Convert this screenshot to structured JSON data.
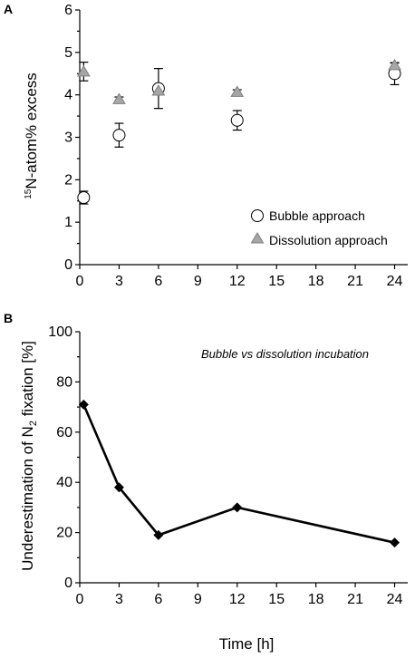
{
  "chart_data": [
    {
      "panel": "A",
      "type": "scatter",
      "ylabel": {
        "superscript": "15",
        "text": "N-atom% excess"
      },
      "xlabel": "",
      "xlim": [
        0,
        25
      ],
      "ylim": [
        0,
        6
      ],
      "x_ticks": [
        0,
        3,
        6,
        9,
        12,
        15,
        18,
        21,
        24
      ],
      "y_ticks": [
        0,
        1,
        2,
        3,
        4,
        5,
        6
      ],
      "grid": false,
      "legend": "bottom-right",
      "series": [
        {
          "name": "Bubble approach",
          "marker": "circle-open",
          "points": [
            {
              "x": 0.3,
              "y": 1.58,
              "err": 0.15
            },
            {
              "x": 3,
              "y": 3.05,
              "err": 0.28
            },
            {
              "x": 6,
              "y": 4.15,
              "err": 0.47
            },
            {
              "x": 12,
              "y": 3.4,
              "err": 0.23
            },
            {
              "x": 24,
              "y": 4.5,
              "err": 0.26
            }
          ]
        },
        {
          "name": "Dissolution approach",
          "marker": "triangle-gray",
          "color": "#a6a6a6",
          "points": [
            {
              "x": 0.3,
              "y": 4.55,
              "err": 0.22
            },
            {
              "x": 3,
              "y": 3.9,
              "err": 0.05
            },
            {
              "x": 6,
              "y": 4.1,
              "err": 0.05
            },
            {
              "x": 12,
              "y": 4.07,
              "err": 0.05
            },
            {
              "x": 24,
              "y": 4.7,
              "err": 0.05
            }
          ]
        }
      ]
    },
    {
      "panel": "B",
      "type": "line",
      "ylabel": {
        "prefix": "Underestimation of N",
        "subscript": "2",
        "suffix": " fixation [%]"
      },
      "xlabel": "Time [h]",
      "annotation": "Bubble vs dissolution incubation",
      "xlim": [
        0,
        25
      ],
      "ylim": [
        0,
        100
      ],
      "x_ticks": [
        0,
        3,
        6,
        9,
        12,
        15,
        18,
        21,
        24
      ],
      "y_ticks": [
        0,
        20,
        40,
        60,
        80,
        100
      ],
      "grid": false,
      "series": [
        {
          "marker": "diamond-filled",
          "color": "#000000",
          "points": [
            {
              "x": 0.3,
              "y": 71
            },
            {
              "x": 3,
              "y": 38
            },
            {
              "x": 6,
              "y": 19
            },
            {
              "x": 12,
              "y": 30
            },
            {
              "x": 24,
              "y": 16
            }
          ]
        }
      ]
    }
  ]
}
